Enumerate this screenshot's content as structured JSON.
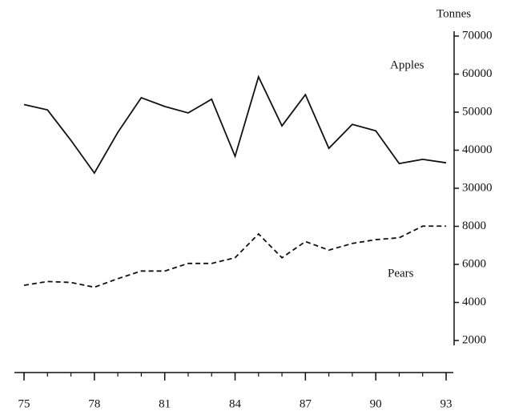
{
  "chart_data": {
    "type": "line",
    "y_axis_label": "Tonnes",
    "x": [
      75,
      76,
      77,
      78,
      79,
      80,
      81,
      82,
      83,
      84,
      85,
      86,
      87,
      88,
      89,
      90,
      91,
      92,
      93
    ],
    "series": [
      {
        "name": "Apples",
        "color": "#111111",
        "dash": "solid",
        "values": [
          52000,
          50600,
          42600,
          34000,
          44700,
          53800,
          51500,
          49800,
          53400,
          38400,
          59300,
          46400,
          54600,
          40500,
          46800,
          45100,
          36500,
          37600,
          36700
        ]
      },
      {
        "name": "Pears",
        "color": "#111111",
        "dash": "dashed",
        "values": [
          4900,
          5100,
          5050,
          4800,
          5250,
          5650,
          5650,
          6050,
          6050,
          6350,
          7600,
          6350,
          7200,
          6750,
          7100,
          7300,
          7400,
          8100,
          8100
        ]
      }
    ],
    "xlim": [
      75,
      93
    ],
    "xticks": [
      75,
      78,
      81,
      84,
      87,
      90,
      93
    ],
    "xminorticks": [
      75,
      76,
      77,
      78,
      79,
      80,
      81,
      82,
      83,
      84,
      85,
      86,
      87,
      88,
      89,
      90,
      91,
      92,
      93
    ],
    "ylim": [
      2000,
      70000
    ],
    "yticks": [
      2000,
      4000,
      6000,
      8000,
      30000,
      40000,
      50000,
      60000,
      70000
    ],
    "y_axis_side": "right",
    "broken_axis": true
  }
}
